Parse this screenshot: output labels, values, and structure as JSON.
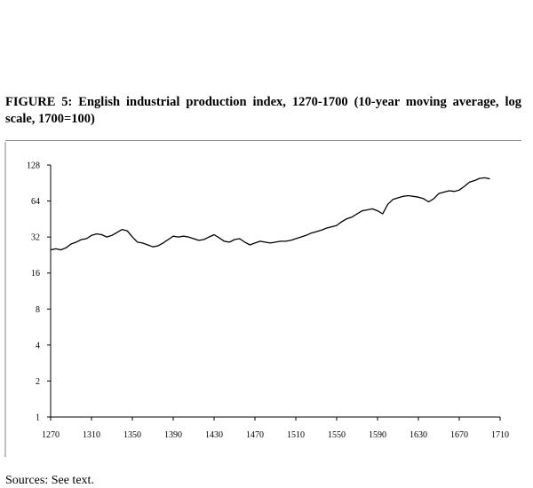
{
  "figure": {
    "title": "FIGURE 5: English industrial production index, 1270-1700 (10-year moving average, log scale, 1700=100)",
    "sources": "Sources: See text."
  },
  "chart_data": {
    "type": "line",
    "title": "FIGURE 5: English industrial production index, 1270-1700 (10-year moving average, log scale, 1700=100)",
    "xlabel": "",
    "ylabel": "",
    "y_scale": "log2",
    "xlim": [
      1270,
      1710
    ],
    "ylim": [
      1,
      128
    ],
    "x_ticks": [
      1270,
      1310,
      1350,
      1390,
      1430,
      1470,
      1510,
      1550,
      1590,
      1630,
      1670,
      1710
    ],
    "y_ticks": [
      1,
      2,
      4,
      8,
      16,
      32,
      64,
      128
    ],
    "grid": false,
    "legend": "none",
    "line_color": "#000000",
    "series": [
      {
        "x": [
          1270,
          1275,
          1280,
          1285,
          1290,
          1295,
          1300,
          1305,
          1310,
          1315,
          1320,
          1325,
          1330,
          1335,
          1340,
          1345,
          1350,
          1355,
          1360,
          1365,
          1370,
          1375,
          1380,
          1385,
          1390,
          1395,
          1400,
          1405,
          1410,
          1415,
          1420,
          1425,
          1430,
          1435,
          1440,
          1445,
          1450,
          1455,
          1460,
          1465,
          1470,
          1475,
          1480,
          1485,
          1490,
          1495,
          1500,
          1505,
          1510,
          1515,
          1520,
          1525,
          1530,
          1535,
          1540,
          1545,
          1550,
          1555,
          1560,
          1565,
          1570,
          1575,
          1580,
          1585,
          1590,
          1595,
          1600,
          1605,
          1610,
          1615,
          1620,
          1625,
          1630,
          1635,
          1640,
          1645,
          1650,
          1655,
          1660,
          1665,
          1670,
          1675,
          1680,
          1685,
          1690,
          1695,
          1700
        ],
        "values": [
          25,
          25.5,
          25,
          26,
          28,
          29,
          30.5,
          31,
          33,
          34,
          33.5,
          32,
          33,
          35,
          37,
          36,
          32,
          29,
          28.5,
          27.5,
          26.5,
          27,
          28.5,
          30.5,
          32.5,
          32,
          32.5,
          32,
          31,
          30,
          30.5,
          32,
          33.5,
          31.5,
          29.5,
          29,
          30.5,
          31,
          29,
          27.5,
          28.5,
          29.5,
          29,
          28.5,
          29,
          29.5,
          29.5,
          30,
          31,
          32,
          33,
          34.5,
          35.5,
          36.5,
          38,
          39,
          40,
          43,
          45.5,
          47,
          50,
          53,
          54,
          55,
          53,
          50,
          60,
          66,
          68,
          70,
          71,
          70,
          69,
          67,
          63,
          67,
          74,
          76,
          78,
          77,
          79,
          85,
          92,
          95,
          99,
          100,
          98
        ]
      }
    ]
  }
}
